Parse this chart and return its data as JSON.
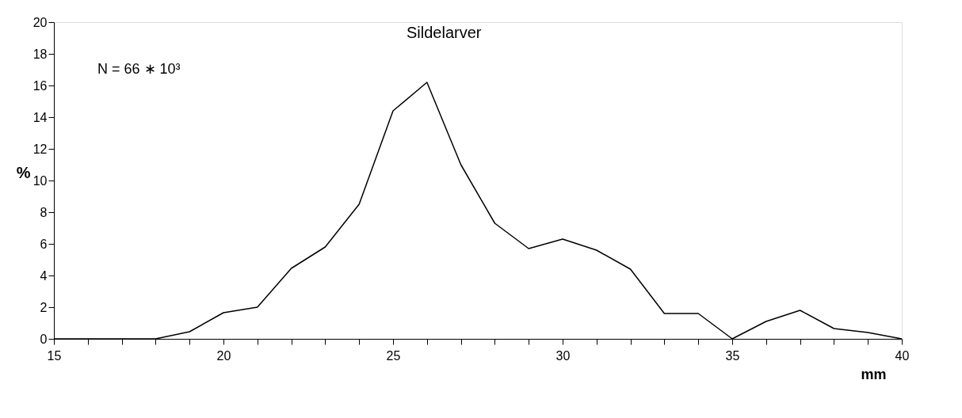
{
  "chart_data": {
    "type": "line",
    "title": "Sildelarver",
    "xlabel": "mm",
    "ylabel": "%",
    "annotations": [
      "N = 66 ∗ 10³"
    ],
    "x": [
      15,
      16,
      17,
      18,
      19,
      20,
      21,
      22,
      23,
      24,
      25,
      26,
      27,
      28,
      29,
      30,
      31,
      32,
      33,
      34,
      35,
      36,
      37,
      38,
      39,
      40
    ],
    "series": [
      {
        "color": "#000000",
        "values": [
          0,
          0,
          0,
          0,
          0.45,
          1.65,
          2.0,
          4.45,
          5.8,
          8.5,
          14.4,
          16.2,
          11.0,
          7.3,
          5.7,
          6.3,
          5.6,
          4.4,
          1.6,
          1.6,
          0,
          1.1,
          1.8,
          0.65,
          0.4,
          0
        ]
      }
    ],
    "xlim": [
      15,
      40
    ],
    "xticks": [
      15,
      {
        "value": 16,
        "label": null
      },
      {
        "value": 17,
        "label": null
      },
      {
        "value": 18,
        "label": null
      },
      {
        "value": 19,
        "label": null
      },
      20,
      {
        "value": 21,
        "label": null
      },
      {
        "value": 22,
        "label": null
      },
      {
        "value": 23,
        "label": null
      },
      {
        "value": 24,
        "label": null
      },
      25,
      {
        "value": 26,
        "label": null
      },
      {
        "value": 27,
        "label": null
      },
      {
        "value": 28,
        "label": null
      },
      {
        "value": 29,
        "label": null
      },
      30,
      {
        "value": 31,
        "label": null
      },
      {
        "value": 32,
        "label": null
      },
      {
        "value": 33,
        "label": null
      },
      {
        "value": 34,
        "label": null
      },
      35,
      {
        "value": 36,
        "label": null
      },
      {
        "value": 37,
        "label": null
      },
      {
        "value": 38,
        "label": null
      },
      {
        "value": 39,
        "label": null
      },
      40
    ],
    "ylim": [
      0,
      20
    ],
    "yticks": [
      0,
      2,
      4,
      6,
      8,
      10,
      12,
      14,
      16,
      18,
      20
    ],
    "grid": false,
    "legend": false,
    "marker": "none",
    "line_style": "solid"
  }
}
